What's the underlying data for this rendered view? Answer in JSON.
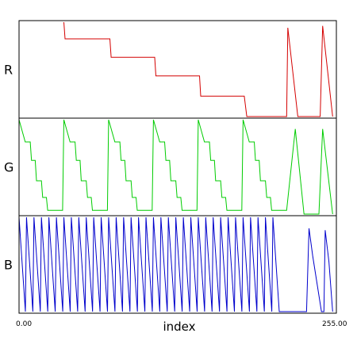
{
  "chart_data": {
    "type": "line",
    "xlabel": "index",
    "xlim": [
      0,
      255
    ],
    "x_tick_labels": [
      "0.00",
      "255.00"
    ],
    "panels": [
      {
        "label": "R",
        "color": "#d40000",
        "ylim": [
          0,
          255
        ],
        "points": [
          [
            36,
            255
          ],
          [
            37,
            210
          ],
          [
            73,
            210
          ],
          [
            74,
            160
          ],
          [
            109,
            160
          ],
          [
            110,
            110
          ],
          [
            145,
            110
          ],
          [
            146,
            55
          ],
          [
            181,
            55
          ],
          [
            183,
            0
          ],
          [
            215,
            0
          ],
          [
            216,
            240
          ],
          [
            224,
            0
          ],
          [
            242,
            0
          ],
          [
            244,
            245
          ],
          [
            252,
            0
          ]
        ]
      },
      {
        "label": "G",
        "color": "#00cc00",
        "ylim": [
          0,
          255
        ],
        "points": [
          [
            0,
            255
          ],
          [
            5,
            195
          ],
          [
            9,
            195
          ],
          [
            10,
            145
          ],
          [
            13,
            145
          ],
          [
            14,
            90
          ],
          [
            18,
            90
          ],
          [
            19,
            45
          ],
          [
            22,
            45
          ],
          [
            23,
            10
          ],
          [
            35,
            10
          ],
          [
            36,
            255
          ],
          [
            41,
            195
          ],
          [
            45,
            195
          ],
          [
            46,
            145
          ],
          [
            49,
            145
          ],
          [
            50,
            90
          ],
          [
            54,
            90
          ],
          [
            55,
            45
          ],
          [
            58,
            45
          ],
          [
            59,
            10
          ],
          [
            71,
            10
          ],
          [
            72,
            255
          ],
          [
            77,
            195
          ],
          [
            81,
            195
          ],
          [
            82,
            145
          ],
          [
            85,
            145
          ],
          [
            86,
            90
          ],
          [
            90,
            90
          ],
          [
            91,
            45
          ],
          [
            94,
            45
          ],
          [
            95,
            10
          ],
          [
            107,
            10
          ],
          [
            108,
            255
          ],
          [
            113,
            195
          ],
          [
            117,
            195
          ],
          [
            118,
            145
          ],
          [
            121,
            145
          ],
          [
            122,
            90
          ],
          [
            126,
            90
          ],
          [
            127,
            45
          ],
          [
            130,
            45
          ],
          [
            131,
            10
          ],
          [
            143,
            10
          ],
          [
            144,
            255
          ],
          [
            149,
            195
          ],
          [
            153,
            195
          ],
          [
            154,
            145
          ],
          [
            157,
            145
          ],
          [
            158,
            90
          ],
          [
            162,
            90
          ],
          [
            163,
            45
          ],
          [
            166,
            45
          ],
          [
            167,
            10
          ],
          [
            179,
            10
          ],
          [
            180,
            255
          ],
          [
            185,
            195
          ],
          [
            189,
            195
          ],
          [
            190,
            145
          ],
          [
            193,
            145
          ],
          [
            194,
            90
          ],
          [
            198,
            90
          ],
          [
            199,
            45
          ],
          [
            202,
            45
          ],
          [
            203,
            10
          ],
          [
            215,
            10
          ],
          [
            222,
            230
          ],
          [
            229,
            0
          ],
          [
            241,
            0
          ],
          [
            244,
            230
          ],
          [
            252,
            0
          ]
        ]
      },
      {
        "label": "B",
        "color": "#0000cc",
        "ylim": [
          0,
          255
        ],
        "sawtooth": {
          "start": 0,
          "end": 213,
          "period": 6,
          "high": 255,
          "low": 0
        },
        "points": [
          [
            231,
            0
          ],
          [
            233,
            225
          ],
          [
            236,
            150
          ],
          [
            243,
            0
          ],
          [
            245,
            0
          ],
          [
            246,
            220
          ],
          [
            249,
            135
          ],
          [
            252,
            0
          ]
        ]
      }
    ]
  }
}
